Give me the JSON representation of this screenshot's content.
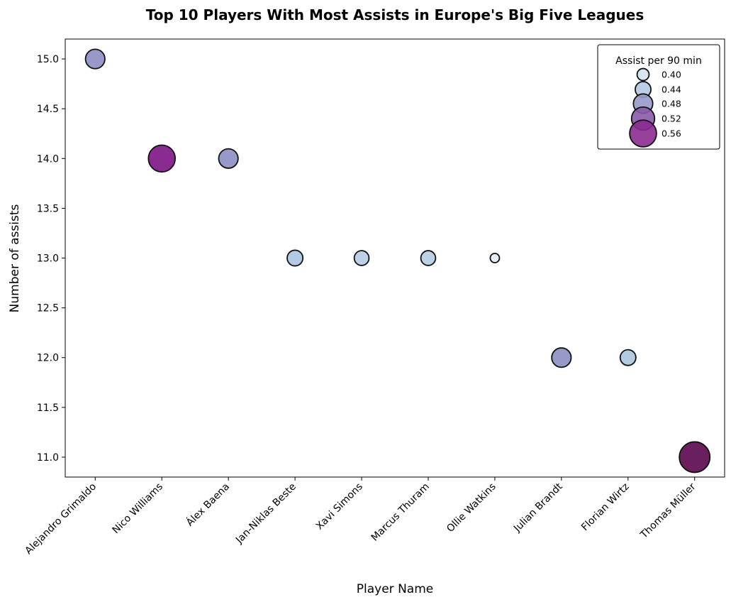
{
  "chart_data": {
    "type": "scatter",
    "title": "Top 10 Players With Most Assists in Europe's Big Five Leagues",
    "xlabel": "Player Name",
    "ylabel": "Number of assists",
    "categories": [
      "Alejandro Grimaldo",
      "Nico Williams",
      "Álex Baena",
      "Jan-Niklas Beste",
      "Xavi Simons",
      "Marcus Thuram",
      "Ollie Watkins",
      "Julian Brandt",
      "Florian Wirtz",
      "Thomas Müller"
    ],
    "values": [
      15,
      14,
      14,
      13,
      13,
      13,
      13,
      12,
      12,
      11
    ],
    "assists_per_90": [
      0.48,
      0.56,
      0.48,
      0.44,
      0.43,
      0.43,
      0.37,
      0.48,
      0.44,
      0.6
    ],
    "ylim": [
      10.8,
      15.2
    ],
    "yticks": [
      "11.0",
      "11.5",
      "12.0",
      "12.5",
      "13.0",
      "13.5",
      "14.0",
      "14.5",
      "15.0"
    ],
    "grid": false,
    "legend": {
      "title": "Assist per 90 min",
      "placement": "top-right",
      "entries": [
        "0.40",
        "0.44",
        "0.48",
        "0.52",
        "0.56"
      ]
    }
  }
}
